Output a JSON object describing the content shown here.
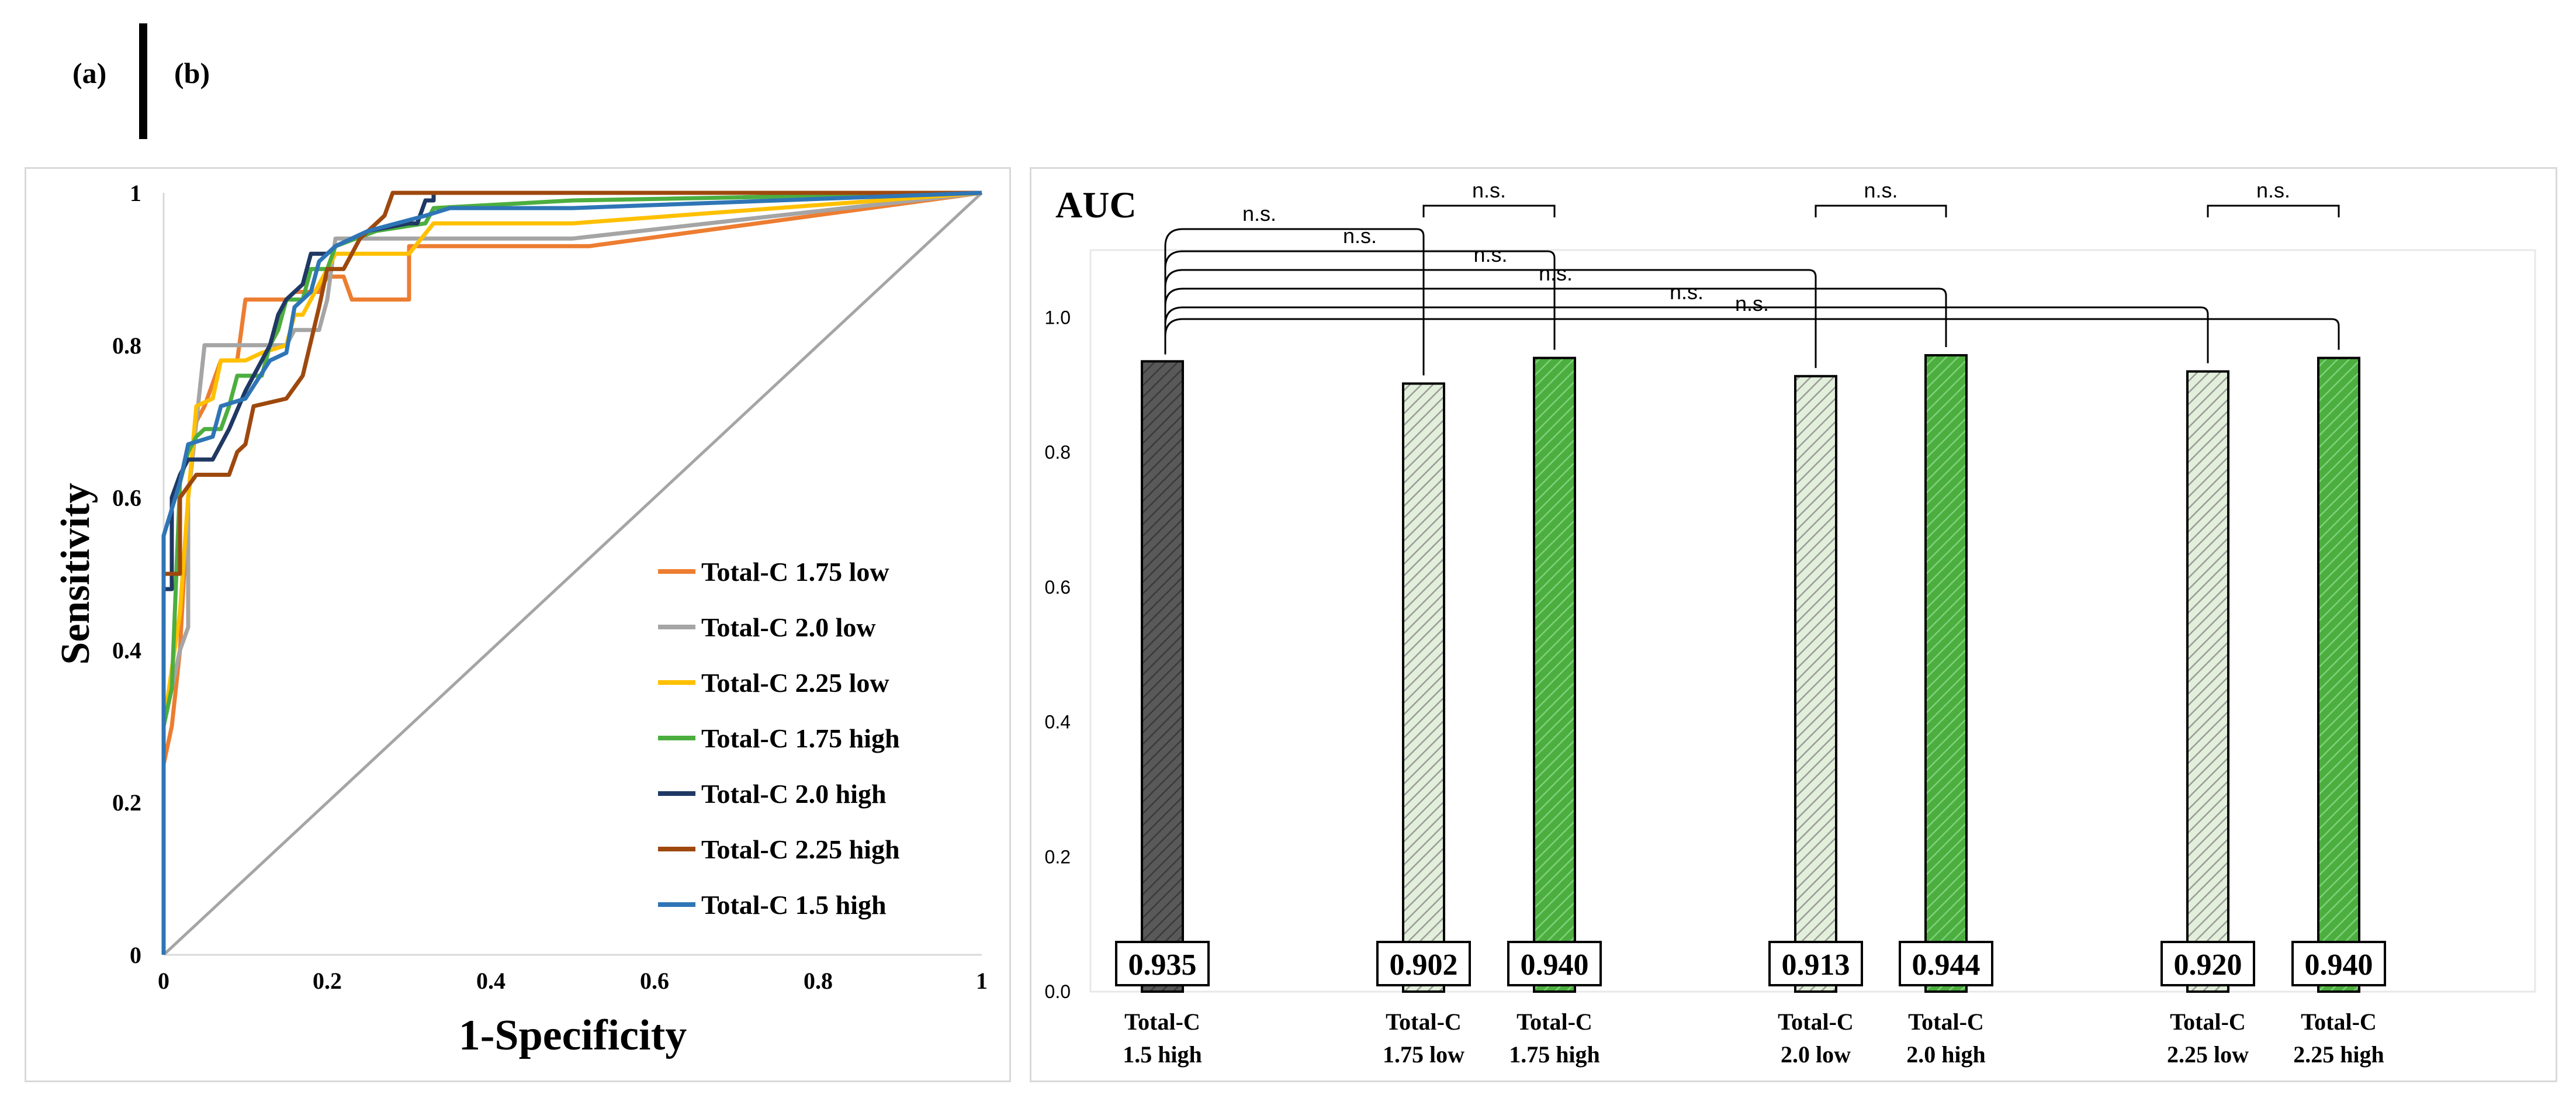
{
  "panel_labels": {
    "a": "(a)",
    "b": "(b)"
  },
  "chart_data": [
    {
      "type": "line",
      "panel": "(a)",
      "xlabel": "1-Specificity",
      "ylabel": "Sensitivity",
      "xlim": [
        0,
        1
      ],
      "ylim": [
        0,
        1
      ],
      "xticks": [
        "0",
        "0.2",
        "0.4",
        "0.6",
        "0.8",
        "1"
      ],
      "yticks": [
        "0",
        "0.2",
        "0.4",
        "0.6",
        "0.8",
        "1"
      ],
      "diagonal_reference": true,
      "legend_position": "bottom-right",
      "series": [
        {
          "name": "Total-C 1.75 low",
          "color": "#ed7d31",
          "points": [
            [
              0,
              0
            ],
            [
              0,
              0.25
            ],
            [
              0.01,
              0.3
            ],
            [
              0.02,
              0.4
            ],
            [
              0.03,
              0.6
            ],
            [
              0.04,
              0.7
            ],
            [
              0.05,
              0.72
            ],
            [
              0.06,
              0.75
            ],
            [
              0.07,
              0.78
            ],
            [
              0.09,
              0.78
            ],
            [
              0.1,
              0.86
            ],
            [
              0.12,
              0.86
            ],
            [
              0.15,
              0.86
            ],
            [
              0.16,
              0.87
            ],
            [
              0.19,
              0.87
            ],
            [
              0.2,
              0.89
            ],
            [
              0.22,
              0.89
            ],
            [
              0.23,
              0.86
            ],
            [
              0.3,
              0.86
            ],
            [
              0.3,
              0.93
            ],
            [
              0.52,
              0.93
            ],
            [
              1,
              1
            ]
          ]
        },
        {
          "name": "Total-C 2.0 low",
          "color": "#a5a5a5",
          "points": [
            [
              0,
              0
            ],
            [
              0,
              0.3
            ],
            [
              0.02,
              0.4
            ],
            [
              0.03,
              0.43
            ],
            [
              0.03,
              0.6
            ],
            [
              0.05,
              0.8
            ],
            [
              0.08,
              0.8
            ],
            [
              0.1,
              0.8
            ],
            [
              0.12,
              0.8
            ],
            [
              0.15,
              0.8
            ],
            [
              0.16,
              0.82
            ],
            [
              0.19,
              0.82
            ],
            [
              0.2,
              0.86
            ],
            [
              0.21,
              0.94
            ],
            [
              0.5,
              0.94
            ],
            [
              1,
              1
            ]
          ]
        },
        {
          "name": "Total-C 2.25 low",
          "color": "#ffc000",
          "points": [
            [
              0,
              0
            ],
            [
              0,
              0.3
            ],
            [
              0.02,
              0.45
            ],
            [
              0.03,
              0.6
            ],
            [
              0.04,
              0.72
            ],
            [
              0.06,
              0.73
            ],
            [
              0.07,
              0.78
            ],
            [
              0.1,
              0.78
            ],
            [
              0.12,
              0.79
            ],
            [
              0.15,
              0.8
            ],
            [
              0.16,
              0.84
            ],
            [
              0.17,
              0.84
            ],
            [
              0.18,
              0.86
            ],
            [
              0.19,
              0.88
            ],
            [
              0.21,
              0.92
            ],
            [
              0.3,
              0.92
            ],
            [
              0.33,
              0.96
            ],
            [
              0.5,
              0.96
            ],
            [
              1,
              1
            ]
          ]
        },
        {
          "name": "Total-C 1.75 high",
          "color": "#4cae3f",
          "points": [
            [
              0,
              0
            ],
            [
              0,
              0.3
            ],
            [
              0.01,
              0.35
            ],
            [
              0.02,
              0.62
            ],
            [
              0.03,
              0.66
            ],
            [
              0.04,
              0.68
            ],
            [
              0.05,
              0.69
            ],
            [
              0.07,
              0.69
            ],
            [
              0.08,
              0.72
            ],
            [
              0.09,
              0.76
            ],
            [
              0.12,
              0.76
            ],
            [
              0.13,
              0.8
            ],
            [
              0.14,
              0.82
            ],
            [
              0.15,
              0.86
            ],
            [
              0.17,
              0.86
            ],
            [
              0.18,
              0.9
            ],
            [
              0.2,
              0.9
            ],
            [
              0.21,
              0.93
            ],
            [
              0.26,
              0.95
            ],
            [
              0.32,
              0.96
            ],
            [
              0.33,
              0.98
            ],
            [
              0.5,
              0.99
            ],
            [
              1,
              1
            ]
          ]
        },
        {
          "name": "Total-C 2.0 high",
          "color": "#1f3864",
          "points": [
            [
              0,
              0
            ],
            [
              0,
              0.48
            ],
            [
              0.01,
              0.48
            ],
            [
              0.01,
              0.6
            ],
            [
              0.02,
              0.63
            ],
            [
              0.03,
              0.65
            ],
            [
              0.06,
              0.65
            ],
            [
              0.08,
              0.69
            ],
            [
              0.1,
              0.74
            ],
            [
              0.12,
              0.78
            ],
            [
              0.13,
              0.8
            ],
            [
              0.14,
              0.84
            ],
            [
              0.15,
              0.86
            ],
            [
              0.17,
              0.88
            ],
            [
              0.18,
              0.92
            ],
            [
              0.2,
              0.92
            ],
            [
              0.21,
              0.93
            ],
            [
              0.25,
              0.95
            ],
            [
              0.3,
              0.96
            ],
            [
              0.31,
              0.96
            ],
            [
              0.32,
              0.99
            ],
            [
              0.33,
              0.99
            ],
            [
              0.33,
              1
            ],
            [
              1,
              1
            ]
          ]
        },
        {
          "name": "Total-C 2.25 high",
          "color": "#9e480e",
          "points": [
            [
              0,
              0
            ],
            [
              0,
              0.5
            ],
            [
              0.02,
              0.5
            ],
            [
              0.02,
              0.6
            ],
            [
              0.04,
              0.63
            ],
            [
              0.08,
              0.63
            ],
            [
              0.09,
              0.66
            ],
            [
              0.1,
              0.67
            ],
            [
              0.11,
              0.72
            ],
            [
              0.15,
              0.73
            ],
            [
              0.17,
              0.76
            ],
            [
              0.19,
              0.85
            ],
            [
              0.2,
              0.9
            ],
            [
              0.22,
              0.9
            ],
            [
              0.24,
              0.94
            ],
            [
              0.27,
              0.97
            ],
            [
              0.28,
              1
            ],
            [
              1,
              1
            ]
          ]
        },
        {
          "name": "Total-C 1.5 high",
          "color": "#2e75b6",
          "points": [
            [
              0,
              0
            ],
            [
              0,
              0.55
            ],
            [
              0.02,
              0.62
            ],
            [
              0.03,
              0.67
            ],
            [
              0.06,
              0.68
            ],
            [
              0.07,
              0.72
            ],
            [
              0.1,
              0.73
            ],
            [
              0.13,
              0.78
            ],
            [
              0.15,
              0.79
            ],
            [
              0.16,
              0.85
            ],
            [
              0.18,
              0.87
            ],
            [
              0.19,
              0.91
            ],
            [
              0.21,
              0.93
            ],
            [
              0.25,
              0.95
            ],
            [
              0.32,
              0.97
            ],
            [
              0.35,
              0.98
            ],
            [
              0.5,
              0.98
            ],
            [
              1,
              1
            ]
          ]
        }
      ]
    },
    {
      "type": "bar",
      "panel": "(b)",
      "title": "AUC",
      "ylim": [
        0,
        1.1
      ],
      "yticks": [
        "0.0",
        "0.2",
        "0.4",
        "0.6",
        "0.8",
        "1.0"
      ],
      "categories": [
        [
          "Total-C",
          "1.5 high"
        ],
        [
          "Total-C",
          "1.75 low"
        ],
        [
          "Total-C",
          "1.75 high"
        ],
        [
          "Total-C",
          "2.0 low"
        ],
        [
          "Total-C",
          "2.0 high"
        ],
        [
          "Total-C",
          "2.25 low"
        ],
        [
          "Total-C",
          "2.25 high"
        ]
      ],
      "values": [
        0.935,
        0.902,
        0.94,
        0.913,
        0.944,
        0.92,
        0.94
      ],
      "value_labels": [
        "0.935",
        "0.902",
        "0.940",
        "0.913",
        "0.944",
        "0.920",
        "0.940"
      ],
      "bar_styles": [
        "dark",
        "light",
        "green",
        "light",
        "green",
        "light",
        "green"
      ],
      "colors": {
        "dark": "#595959",
        "light": "#e2efda",
        "green": "#4cae3f"
      },
      "significance": [
        {
          "from": 0,
          "to": 1,
          "label": "n.s."
        },
        {
          "from": 0,
          "to": 2,
          "label": "n.s."
        },
        {
          "from": 0,
          "to": 3,
          "label": "n.s."
        },
        {
          "from": 0,
          "to": 4,
          "label": "n.s."
        },
        {
          "from": 0,
          "to": 5,
          "label": "n.s."
        },
        {
          "from": 0,
          "to": 6,
          "label": "n.s."
        },
        {
          "from": 1,
          "to": 2,
          "label": "n.s."
        },
        {
          "from": 3,
          "to": 4,
          "label": "n.s."
        },
        {
          "from": 5,
          "to": 6,
          "label": "n.s."
        }
      ]
    }
  ]
}
